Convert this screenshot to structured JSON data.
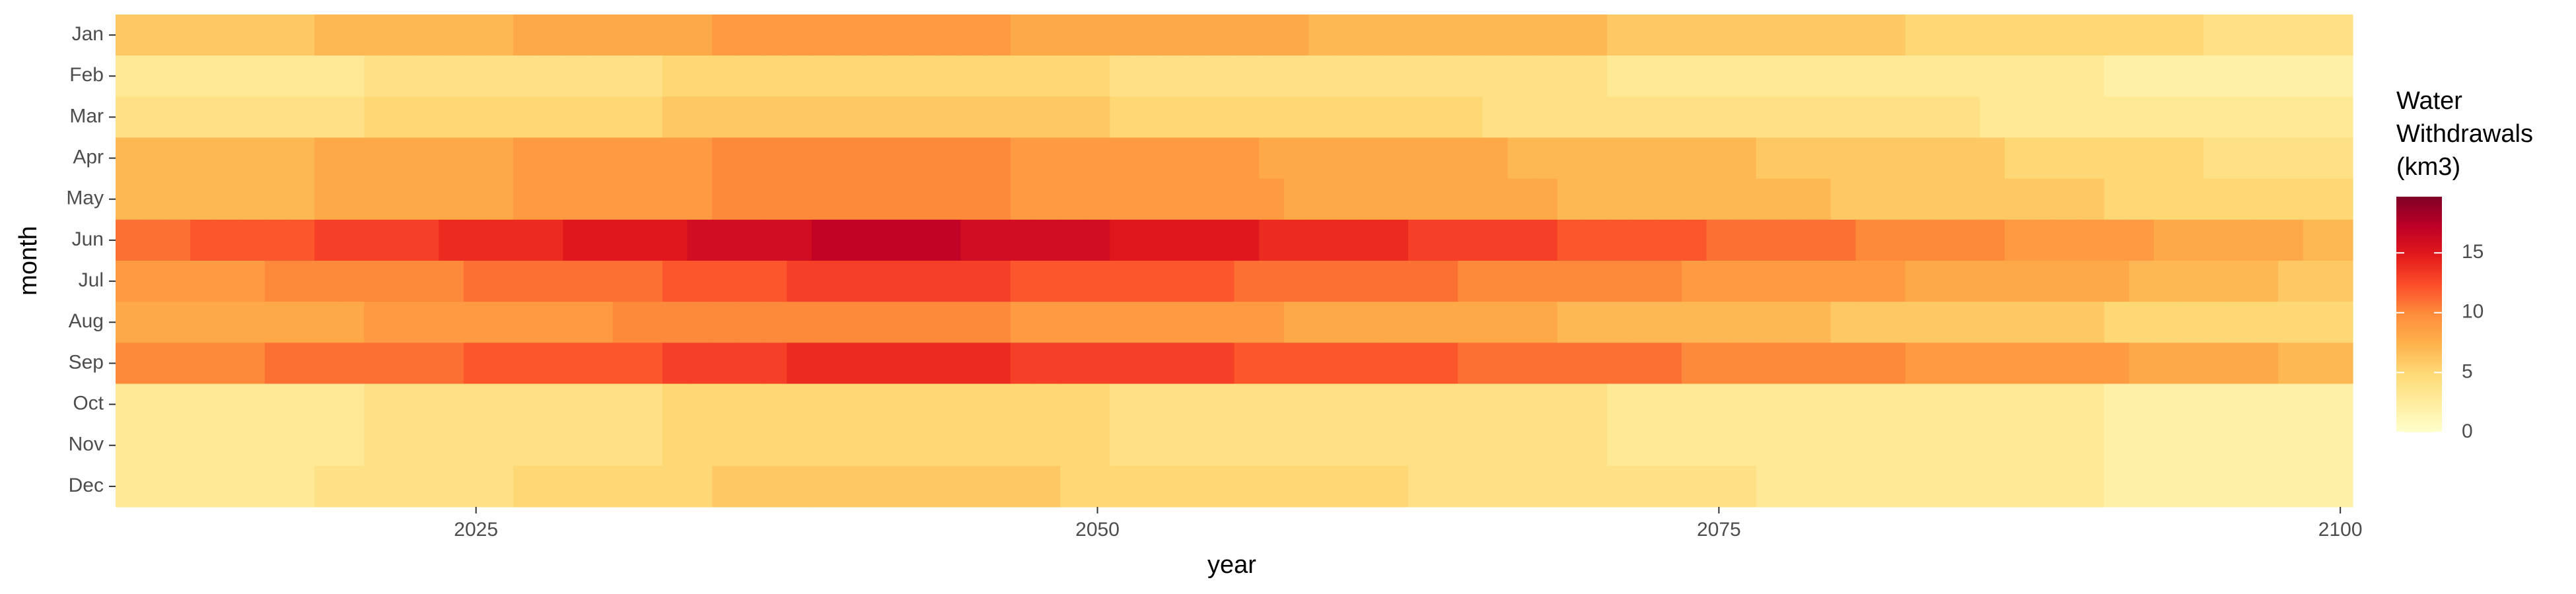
{
  "chart_data": {
    "type": "heatmap",
    "x_label": "year",
    "y_label": "month",
    "legend_title": [
      "Water",
      "Withdrawals",
      "(km3)"
    ],
    "x": [
      2011,
      2012,
      2013,
      2014,
      2015,
      2016,
      2017,
      2018,
      2019,
      2020,
      2021,
      2022,
      2023,
      2024,
      2025,
      2026,
      2027,
      2028,
      2029,
      2030,
      2031,
      2032,
      2033,
      2034,
      2035,
      2036,
      2037,
      2038,
      2039,
      2040,
      2041,
      2042,
      2043,
      2044,
      2045,
      2046,
      2047,
      2048,
      2049,
      2050,
      2051,
      2052,
      2053,
      2054,
      2055,
      2056,
      2057,
      2058,
      2059,
      2060,
      2061,
      2062,
      2063,
      2064,
      2065,
      2066,
      2067,
      2068,
      2069,
      2070,
      2071,
      2072,
      2073,
      2074,
      2075,
      2076,
      2077,
      2078,
      2079,
      2080,
      2081,
      2082,
      2083,
      2084,
      2085,
      2086,
      2087,
      2088,
      2089,
      2090,
      2091,
      2092,
      2093,
      2094,
      2095,
      2096,
      2097,
      2098,
      2099,
      2100
    ],
    "xlim": [
      2010.5,
      2100.5
    ],
    "xticks": [
      2025,
      2050,
      2075,
      2100
    ],
    "clim": [
      0,
      19.7
    ],
    "cticks": [
      0,
      5,
      10,
      15
    ],
    "colorscale": [
      "#ffffcc",
      "#ffeda0",
      "#fed976",
      "#feb24c",
      "#fd8d3c",
      "#fc4e2a",
      "#e31a1c",
      "#bd0026",
      "#800026"
    ],
    "series": [
      {
        "name": "Jan",
        "values": [
          6,
          6,
          6,
          6,
          6,
          6,
          6,
          6,
          7,
          7,
          7,
          7,
          7,
          7,
          7,
          7,
          8,
          8,
          8,
          8,
          8,
          8,
          8,
          8,
          9,
          9,
          9,
          9,
          9,
          9,
          9,
          9,
          9,
          9,
          9,
          9,
          8,
          8,
          8,
          8,
          8,
          8,
          8,
          8,
          8,
          8,
          8,
          8,
          7,
          7,
          7,
          7,
          7,
          7,
          7,
          7,
          7,
          7,
          7,
          7,
          6,
          6,
          6,
          6,
          6,
          6,
          6,
          6,
          6,
          6,
          6,
          6,
          5,
          5,
          5,
          5,
          5,
          5,
          5,
          5,
          5,
          5,
          5,
          5,
          4,
          4,
          4,
          4,
          4,
          4
        ]
      },
      {
        "name": "Feb",
        "values": [
          3,
          3,
          3,
          3,
          3,
          3,
          3,
          3,
          3,
          3,
          4,
          4,
          4,
          4,
          4,
          4,
          4,
          4,
          4,
          4,
          4,
          4,
          5,
          5,
          5,
          5,
          5,
          5,
          5,
          5,
          5,
          5,
          5,
          5,
          5,
          5,
          5,
          5,
          5,
          5,
          4,
          4,
          4,
          4,
          4,
          4,
          4,
          4,
          4,
          4,
          4,
          4,
          4,
          4,
          4,
          4,
          4,
          4,
          4,
          4,
          3,
          3,
          3,
          3,
          3,
          3,
          3,
          3,
          3,
          3,
          3,
          3,
          3,
          3,
          3,
          3,
          3,
          3,
          3,
          3,
          2,
          2,
          2,
          2,
          2,
          2,
          2,
          2,
          2,
          2
        ]
      },
      {
        "name": "Mar",
        "values": [
          4,
          4,
          4,
          4,
          4,
          4,
          4,
          4,
          4,
          4,
          5,
          5,
          5,
          5,
          5,
          5,
          5,
          5,
          5,
          5,
          5,
          5,
          6,
          6,
          6,
          6,
          6,
          6,
          6,
          6,
          6,
          6,
          6,
          6,
          6,
          6,
          6,
          6,
          6,
          6,
          5,
          5,
          5,
          5,
          5,
          5,
          5,
          5,
          5,
          5,
          5,
          5,
          5,
          5,
          5,
          4,
          4,
          4,
          4,
          4,
          4,
          4,
          4,
          4,
          4,
          4,
          4,
          4,
          4,
          4,
          4,
          4,
          4,
          4,
          4,
          3,
          3,
          3,
          3,
          3,
          3,
          3,
          3,
          3,
          3,
          3,
          3,
          3,
          3,
          3
        ]
      },
      {
        "name": "Apr",
        "values": [
          7,
          7,
          7,
          7,
          7,
          7,
          7,
          7,
          8,
          8,
          8,
          8,
          8,
          8,
          8,
          8,
          9,
          9,
          9,
          9,
          9,
          9,
          9,
          9,
          10,
          10,
          10,
          10,
          10,
          10,
          10,
          10,
          10,
          10,
          10,
          10,
          9,
          9,
          9,
          9,
          9,
          9,
          9,
          9,
          9,
          9,
          8,
          8,
          8,
          8,
          8,
          8,
          8,
          8,
          8,
          8,
          7,
          7,
          7,
          7,
          7,
          7,
          7,
          7,
          7,
          7,
          6,
          6,
          6,
          6,
          6,
          6,
          6,
          6,
          6,
          6,
          5,
          5,
          5,
          5,
          5,
          5,
          5,
          5,
          4,
          4,
          4,
          4,
          4,
          4
        ]
      },
      {
        "name": "May",
        "values": [
          7,
          7,
          7,
          7,
          7,
          7,
          7,
          7,
          8,
          8,
          8,
          8,
          8,
          8,
          8,
          8,
          9,
          9,
          9,
          9,
          9,
          9,
          9,
          9,
          10,
          10,
          10,
          10,
          10,
          10,
          10,
          10,
          10,
          10,
          10,
          10,
          9,
          9,
          9,
          9,
          9,
          9,
          9,
          9,
          9,
          9,
          9,
          8,
          8,
          8,
          8,
          8,
          8,
          8,
          8,
          8,
          8,
          8,
          7,
          7,
          7,
          7,
          7,
          7,
          7,
          7,
          7,
          7,
          7,
          6,
          6,
          6,
          6,
          6,
          6,
          6,
          6,
          6,
          6,
          6,
          5,
          5,
          5,
          5,
          5,
          5,
          5,
          5,
          5,
          5
        ]
      },
      {
        "name": "Jun",
        "values": [
          11,
          11,
          11,
          12,
          12,
          12,
          12,
          12,
          13,
          13,
          13,
          13,
          13,
          14,
          14,
          14,
          14,
          14,
          15,
          15,
          15,
          15,
          15,
          16,
          16,
          16,
          16,
          16,
          17,
          17,
          17,
          17,
          17,
          17,
          16,
          16,
          16,
          16,
          16,
          16,
          15,
          15,
          15,
          15,
          15,
          15,
          14,
          14,
          14,
          14,
          14,
          14,
          13,
          13,
          13,
          13,
          13,
          13,
          12,
          12,
          12,
          12,
          12,
          12,
          11,
          11,
          11,
          11,
          11,
          11,
          10,
          10,
          10,
          10,
          10,
          10,
          9,
          9,
          9,
          9,
          9,
          9,
          8,
          8,
          8,
          8,
          8,
          8,
          7,
          7
        ]
      },
      {
        "name": "Jul",
        "values": [
          9,
          9,
          9,
          9,
          9,
          9,
          10,
          10,
          10,
          10,
          10,
          10,
          10,
          10,
          11,
          11,
          11,
          11,
          11,
          11,
          11,
          11,
          12,
          12,
          12,
          12,
          12,
          13,
          13,
          13,
          13,
          13,
          13,
          13,
          13,
          13,
          12,
          12,
          12,
          12,
          12,
          12,
          12,
          12,
          12,
          11,
          11,
          11,
          11,
          11,
          11,
          11,
          11,
          11,
          10,
          10,
          10,
          10,
          10,
          10,
          10,
          10,
          10,
          9,
          9,
          9,
          9,
          9,
          9,
          9,
          9,
          9,
          8,
          8,
          8,
          8,
          8,
          8,
          8,
          8,
          8,
          7,
          7,
          7,
          7,
          7,
          7,
          6,
          6,
          6
        ]
      },
      {
        "name": "Aug",
        "values": [
          8,
          8,
          8,
          8,
          8,
          8,
          8,
          8,
          8,
          8,
          9,
          9,
          9,
          9,
          9,
          9,
          9,
          9,
          9,
          9,
          10,
          10,
          10,
          10,
          10,
          10,
          10,
          10,
          10,
          10,
          10,
          10,
          10,
          10,
          10,
          10,
          9,
          9,
          9,
          9,
          9,
          9,
          9,
          9,
          9,
          9,
          9,
          8,
          8,
          8,
          8,
          8,
          8,
          8,
          8,
          8,
          8,
          8,
          7,
          7,
          7,
          7,
          7,
          7,
          7,
          7,
          7,
          7,
          7,
          6,
          6,
          6,
          6,
          6,
          6,
          6,
          6,
          6,
          6,
          6,
          5,
          5,
          5,
          5,
          5,
          5,
          5,
          5,
          5,
          5
        ]
      },
      {
        "name": "Sep",
        "values": [
          10,
          10,
          10,
          10,
          10,
          10,
          11,
          11,
          11,
          11,
          11,
          11,
          11,
          11,
          12,
          12,
          12,
          12,
          12,
          12,
          12,
          12,
          13,
          13,
          13,
          13,
          13,
          14,
          14,
          14,
          14,
          14,
          14,
          14,
          14,
          14,
          13,
          13,
          13,
          13,
          13,
          13,
          13,
          13,
          13,
          12,
          12,
          12,
          12,
          12,
          12,
          12,
          12,
          12,
          11,
          11,
          11,
          11,
          11,
          11,
          11,
          11,
          11,
          10,
          10,
          10,
          10,
          10,
          10,
          10,
          10,
          10,
          9,
          9,
          9,
          9,
          9,
          9,
          9,
          9,
          9,
          8,
          8,
          8,
          8,
          8,
          8,
          7,
          7,
          7
        ]
      },
      {
        "name": "Oct",
        "values": [
          3,
          3,
          3,
          3,
          3,
          3,
          3,
          3,
          3,
          3,
          4,
          4,
          4,
          4,
          4,
          4,
          4,
          4,
          4,
          4,
          4,
          4,
          5,
          5,
          5,
          5,
          5,
          5,
          5,
          5,
          5,
          5,
          5,
          5,
          5,
          5,
          5,
          5,
          5,
          5,
          4,
          4,
          4,
          4,
          4,
          4,
          4,
          4,
          4,
          4,
          4,
          4,
          4,
          4,
          4,
          4,
          4,
          4,
          4,
          4,
          3,
          3,
          3,
          3,
          3,
          3,
          3,
          3,
          3,
          3,
          3,
          3,
          3,
          3,
          3,
          3,
          3,
          3,
          3,
          3,
          2,
          2,
          2,
          2,
          2,
          2,
          2,
          2,
          2,
          2
        ]
      },
      {
        "name": "Nov",
        "values": [
          3,
          3,
          3,
          3,
          3,
          3,
          3,
          3,
          3,
          3,
          4,
          4,
          4,
          4,
          4,
          4,
          4,
          4,
          4,
          4,
          4,
          4,
          5,
          5,
          5,
          5,
          5,
          5,
          5,
          5,
          5,
          5,
          5,
          5,
          5,
          5,
          5,
          5,
          5,
          5,
          4,
          4,
          4,
          4,
          4,
          4,
          4,
          4,
          4,
          4,
          4,
          4,
          4,
          4,
          4,
          4,
          4,
          4,
          4,
          4,
          3,
          3,
          3,
          3,
          3,
          3,
          3,
          3,
          3,
          3,
          3,
          3,
          3,
          3,
          3,
          3,
          3,
          3,
          3,
          3,
          2,
          2,
          2,
          2,
          2,
          2,
          2,
          2,
          2,
          2
        ]
      },
      {
        "name": "Dec",
        "values": [
          3,
          3,
          3,
          3,
          3,
          3,
          3,
          3,
          4,
          4,
          4,
          4,
          4,
          4,
          4,
          4,
          5,
          5,
          5,
          5,
          5,
          5,
          5,
          5,
          6,
          6,
          6,
          6,
          6,
          6,
          6,
          6,
          6,
          6,
          6,
          6,
          6,
          6,
          5,
          5,
          5,
          5,
          5,
          5,
          5,
          5,
          5,
          5,
          5,
          5,
          5,
          5,
          4,
          4,
          4,
          4,
          4,
          4,
          4,
          4,
          4,
          4,
          4,
          4,
          4,
          4,
          3,
          3,
          3,
          3,
          3,
          3,
          3,
          3,
          3,
          3,
          3,
          3,
          3,
          3,
          2,
          2,
          2,
          2,
          2,
          2,
          2,
          2,
          2,
          2
        ]
      }
    ]
  }
}
